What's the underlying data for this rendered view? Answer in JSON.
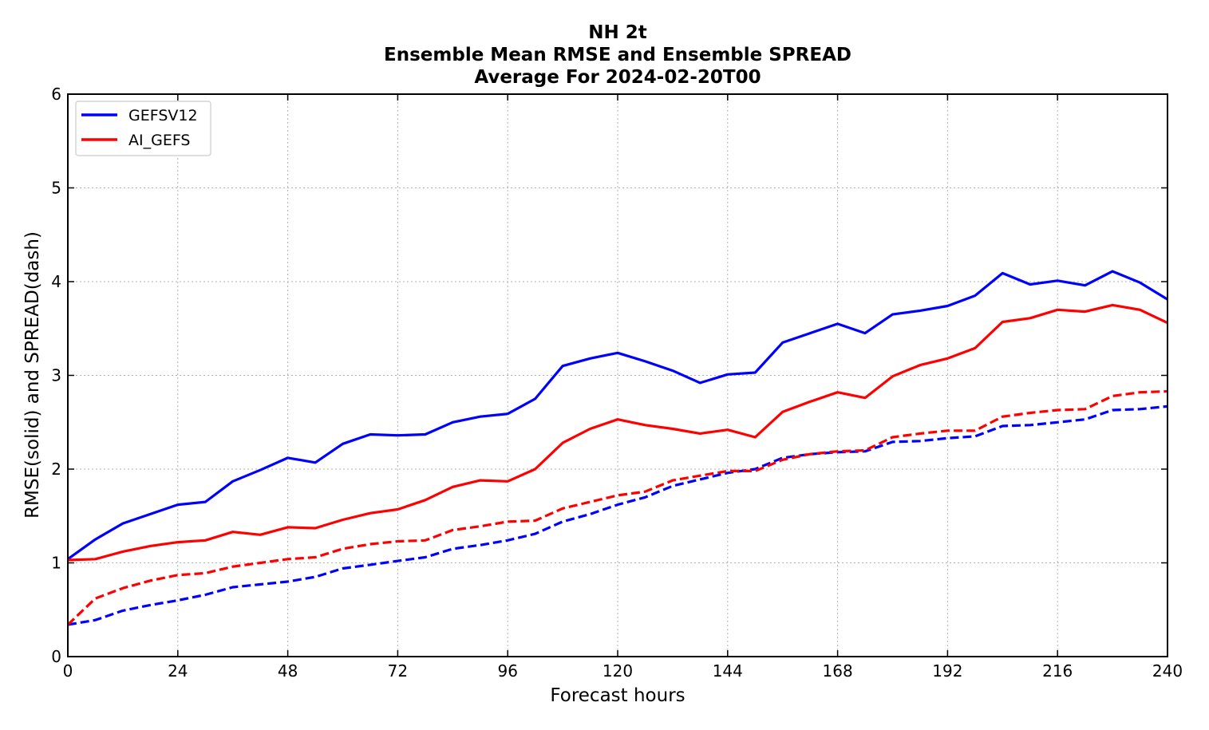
{
  "chart_data": {
    "type": "line",
    "title_lines": [
      "NH 2t",
      "Ensemble Mean RMSE and Ensemble SPREAD",
      "Average For 2024-02-20T00"
    ],
    "xlabel": "Forecast hours",
    "ylabel": "RMSE(solid) and SPREAD(dash)",
    "xlim": [
      0,
      240
    ],
    "ylim": [
      0,
      6
    ],
    "xticks": [
      0,
      24,
      48,
      72,
      96,
      120,
      144,
      168,
      192,
      216,
      240
    ],
    "yticks": [
      0,
      1,
      2,
      3,
      4,
      5,
      6
    ],
    "grid": true,
    "legend_position": "top-left",
    "legend": [
      {
        "label": "GEFSV12",
        "color": "#0000ff"
      },
      {
        "label": "AI_GEFS",
        "color": "#ff0000"
      }
    ],
    "x": [
      0,
      6,
      12,
      18,
      24,
      30,
      36,
      42,
      48,
      54,
      60,
      66,
      72,
      78,
      84,
      90,
      96,
      102,
      108,
      114,
      120,
      126,
      132,
      138,
      144,
      150,
      156,
      162,
      168,
      174,
      180,
      186,
      192,
      198,
      204,
      210,
      216,
      222,
      228,
      234,
      240
    ],
    "series": [
      {
        "name": "GEFSV12",
        "metric": "RMSE",
        "color": "#0000ff",
        "style": "solid",
        "values": [
          1.04,
          1.25,
          1.42,
          1.52,
          1.62,
          1.65,
          1.87,
          1.99,
          2.12,
          2.07,
          2.27,
          2.37,
          2.36,
          2.37,
          2.5,
          2.56,
          2.59,
          2.75,
          3.1,
          3.18,
          3.24,
          3.15,
          3.05,
          2.92,
          3.01,
          3.03,
          3.35,
          3.45,
          3.55,
          3.45,
          3.65,
          3.69,
          3.74,
          3.85,
          4.09,
          3.97,
          4.01,
          3.96,
          4.11,
          3.99,
          3.81
        ]
      },
      {
        "name": "AI_GEFS",
        "metric": "RMSE",
        "color": "#ff0000",
        "style": "solid",
        "values": [
          1.03,
          1.04,
          1.12,
          1.18,
          1.22,
          1.24,
          1.33,
          1.3,
          1.38,
          1.37,
          1.46,
          1.53,
          1.57,
          1.67,
          1.81,
          1.88,
          1.87,
          2.0,
          2.28,
          2.43,
          2.53,
          2.47,
          2.43,
          2.38,
          2.42,
          2.34,
          2.61,
          2.72,
          2.82,
          2.76,
          2.99,
          3.11,
          3.18,
          3.29,
          3.57,
          3.61,
          3.7,
          3.68,
          3.75,
          3.7,
          3.56
        ]
      },
      {
        "name": "GEFSV12",
        "metric": "SPREAD",
        "color": "#0000ff",
        "style": "dashed",
        "values": [
          0.34,
          0.39,
          0.49,
          0.55,
          0.6,
          0.66,
          0.74,
          0.77,
          0.8,
          0.85,
          0.94,
          0.98,
          1.02,
          1.06,
          1.15,
          1.19,
          1.24,
          1.31,
          1.44,
          1.52,
          1.62,
          1.7,
          1.82,
          1.89,
          1.96,
          2.0,
          2.12,
          2.16,
          2.18,
          2.19,
          2.29,
          2.3,
          2.33,
          2.35,
          2.46,
          2.47,
          2.5,
          2.53,
          2.63,
          2.64,
          2.67
        ]
      },
      {
        "name": "AI_GEFS",
        "metric": "SPREAD",
        "color": "#ff0000",
        "style": "dashed",
        "values": [
          0.34,
          0.62,
          0.73,
          0.81,
          0.87,
          0.89,
          0.96,
          1.0,
          1.04,
          1.06,
          1.15,
          1.2,
          1.23,
          1.24,
          1.35,
          1.39,
          1.44,
          1.45,
          1.58,
          1.65,
          1.72,
          1.76,
          1.88,
          1.93,
          1.98,
          1.98,
          2.1,
          2.16,
          2.19,
          2.2,
          2.34,
          2.38,
          2.41,
          2.41,
          2.56,
          2.6,
          2.63,
          2.64,
          2.78,
          2.82,
          2.83
        ]
      }
    ]
  }
}
